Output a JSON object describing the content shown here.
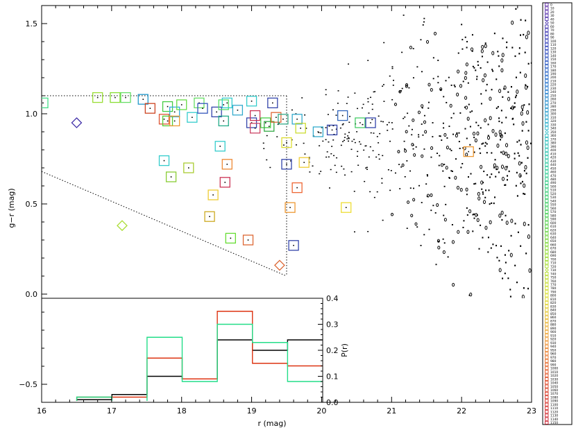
{
  "chart_data": [
    {
      "type": "scatter",
      "xlabel": "r (mag)",
      "ylabel": "g−r (mag)",
      "xlim": [
        16,
        23
      ],
      "ylim": [
        -0.6,
        1.6
      ],
      "xticks": [
        "16",
        "17",
        "18",
        "19",
        "20",
        "21",
        "22",
        "23"
      ],
      "yticks": [
        "−0.5",
        "0.0",
        "0.5",
        "1.0",
        "1.5"
      ],
      "grid": false,
      "selection_box": {
        "upper_g_r": 1.1,
        "r_max": 19.5,
        "diagonal": [
          [
            16.0,
            0.68
          ],
          [
            19.5,
            0.1
          ]
        ]
      },
      "candidates": [
        {
          "r": 16.02,
          "gr": 1.06,
          "marker": "square",
          "color": "#44dd88"
        },
        {
          "r": 16.5,
          "gr": 0.95,
          "marker": "diamond",
          "color": "#4433aa"
        },
        {
          "r": 16.8,
          "gr": 1.09,
          "marker": "square",
          "color": "#99dd33"
        },
        {
          "r": 17.05,
          "gr": 1.09,
          "marker": "square",
          "color": "#88dd33"
        },
        {
          "r": 17.2,
          "gr": 1.09,
          "marker": "square",
          "color": "#66dd66"
        },
        {
          "r": 17.15,
          "gr": 0.38,
          "marker": "diamond",
          "color": "#aadd33"
        },
        {
          "r": 17.45,
          "gr": 1.08,
          "marker": "square",
          "color": "#2299cc"
        },
        {
          "r": 17.55,
          "gr": 1.03,
          "marker": "square",
          "color": "#cc4422"
        },
        {
          "r": 17.75,
          "gr": 0.74,
          "marker": "square",
          "color": "#33cccc"
        },
        {
          "r": 17.85,
          "gr": 0.65,
          "marker": "square",
          "color": "#88cc33"
        },
        {
          "r": 17.8,
          "gr": 1.04,
          "marker": "square",
          "color": "#44cc44"
        },
        {
          "r": 17.9,
          "gr": 1.01,
          "marker": "square",
          "color": "#33aadd"
        },
        {
          "r": 17.75,
          "gr": 0.97,
          "marker": "square",
          "color": "#dd5533"
        },
        {
          "r": 17.8,
          "gr": 0.96,
          "marker": "square",
          "color": "#55cc33"
        },
        {
          "r": 17.9,
          "gr": 0.96,
          "marker": "square",
          "color": "#ee9933"
        },
        {
          "r": 18.0,
          "gr": 1.05,
          "marker": "square",
          "color": "#66dd44"
        },
        {
          "r": 18.1,
          "gr": 0.7,
          "marker": "square",
          "color": "#aacc33"
        },
        {
          "r": 18.15,
          "gr": 0.98,
          "marker": "square",
          "color": "#33cccc"
        },
        {
          "r": 18.25,
          "gr": 1.06,
          "marker": "square",
          "color": "#66dd66"
        },
        {
          "r": 18.3,
          "gr": 1.03,
          "marker": "square",
          "color": "#3355bb"
        },
        {
          "r": 18.4,
          "gr": 0.43,
          "marker": "square",
          "color": "#ccaa22"
        },
        {
          "r": 18.45,
          "gr": 0.55,
          "marker": "square",
          "color": "#eecc33"
        },
        {
          "r": 18.5,
          "gr": 1.01,
          "marker": "square",
          "color": "#3344aa"
        },
        {
          "r": 18.55,
          "gr": 0.82,
          "marker": "square",
          "color": "#33cccc"
        },
        {
          "r": 18.6,
          "gr": 1.05,
          "marker": "square",
          "color": "#55dd66"
        },
        {
          "r": 18.65,
          "gr": 1.06,
          "marker": "square",
          "color": "#33cccc"
        },
        {
          "r": 18.6,
          "gr": 0.96,
          "marker": "square",
          "color": "#22aa88"
        },
        {
          "r": 18.65,
          "gr": 0.72,
          "marker": "square",
          "color": "#ee8833"
        },
        {
          "r": 18.62,
          "gr": 0.62,
          "marker": "square",
          "color": "#cc3355"
        },
        {
          "r": 18.7,
          "gr": 0.31,
          "marker": "square",
          "color": "#66dd33"
        },
        {
          "r": 18.8,
          "gr": 1.02,
          "marker": "square",
          "color": "#33aacc"
        },
        {
          "r": 18.95,
          "gr": 0.3,
          "marker": "square",
          "color": "#dd6633"
        },
        {
          "r": 19.0,
          "gr": 1.07,
          "marker": "square",
          "color": "#33cccc"
        },
        {
          "r": 19.0,
          "gr": 0.95,
          "marker": "square",
          "color": "#3344aa"
        },
        {
          "r": 19.05,
          "gr": 0.99,
          "marker": "square",
          "color": "#cc3355"
        },
        {
          "r": 19.05,
          "gr": 0.92,
          "marker": "square",
          "color": "#cc4466"
        },
        {
          "r": 19.2,
          "gr": 0.95,
          "marker": "square",
          "color": "#44cc44"
        },
        {
          "r": 19.3,
          "gr": 1.06,
          "marker": "square",
          "color": "#3344aa"
        },
        {
          "r": 19.25,
          "gr": 0.93,
          "marker": "square",
          "color": "#33aa44"
        },
        {
          "r": 19.35,
          "gr": 0.98,
          "marker": "square",
          "color": "#dd6633"
        },
        {
          "r": 19.45,
          "gr": 0.97,
          "marker": "square",
          "color": "#33aa88"
        },
        {
          "r": 19.5,
          "gr": 0.84,
          "marker": "square",
          "color": "#dddd33"
        },
        {
          "r": 19.5,
          "gr": 0.72,
          "marker": "square",
          "color": "#3344aa"
        },
        {
          "r": 19.65,
          "gr": 0.97,
          "marker": "square",
          "color": "#33aacc"
        },
        {
          "r": 19.7,
          "gr": 0.92,
          "marker": "square",
          "color": "#ccdd33"
        },
        {
          "r": 19.75,
          "gr": 0.73,
          "marker": "square",
          "color": "#eecc33"
        },
        {
          "r": 19.65,
          "gr": 0.59,
          "marker": "square",
          "color": "#ee6633"
        },
        {
          "r": 19.55,
          "gr": 0.48,
          "marker": "square",
          "color": "#ee9933"
        },
        {
          "r": 19.6,
          "gr": 0.27,
          "marker": "square",
          "color": "#3344aa"
        },
        {
          "r": 19.4,
          "gr": 0.16,
          "marker": "diamond",
          "color": "#dd6633"
        },
        {
          "r": 19.95,
          "gr": 0.9,
          "marker": "square",
          "color": "#33aacc"
        },
        {
          "r": 20.15,
          "gr": 0.91,
          "marker": "square",
          "color": "#3344aa"
        },
        {
          "r": 20.3,
          "gr": 0.99,
          "marker": "square",
          "color": "#3366bb"
        },
        {
          "r": 20.35,
          "gr": 0.48,
          "marker": "square",
          "color": "#eedd33"
        },
        {
          "r": 20.55,
          "gr": 0.95,
          "marker": "square",
          "color": "#44cc66"
        },
        {
          "r": 20.7,
          "gr": 0.95,
          "marker": "square",
          "color": "#3344aa"
        },
        {
          "r": 22.1,
          "gr": 0.79,
          "marker": "square",
          "color": "#ee9933"
        }
      ],
      "background": {
        "marker": "dot",
        "color": "#000000",
        "r_range": [
          19.0,
          23.0
        ],
        "gr_center": 0.85,
        "note": ""
      }
    },
    {
      "type": "line",
      "ylabel": "P(r)",
      "xlim": [
        16,
        20
      ],
      "ylim": [
        0,
        0.4
      ],
      "yticks": [
        "0.0",
        "0.1",
        "0.2",
        "0.3",
        "0.4"
      ],
      "bin_edges": [
        16.0,
        16.5,
        17.0,
        17.5,
        18.0,
        18.5,
        19.0,
        19.5,
        20.0
      ],
      "series": [
        {
          "name": "",
          "color": "#000000",
          "values": [
            0.0,
            0.01,
            0.03,
            0.1,
            0.09,
            0.24,
            0.2,
            0.24
          ]
        },
        {
          "name": "",
          "color": "#dd3311",
          "values": [
            0.0,
            0.02,
            0.02,
            0.17,
            0.09,
            0.35,
            0.15,
            0.14
          ]
        },
        {
          "name": "",
          "color": "#22dd88",
          "values": [
            0.0,
            0.02,
            0.0,
            0.25,
            0.08,
            0.3,
            0.23,
            0.08
          ]
        }
      ]
    }
  ],
  "colorbar": {
    "labels": [
      "0",
      "10",
      "20",
      "30",
      "40",
      "50",
      "60",
      "70",
      "80",
      "90",
      "100",
      "110",
      "120",
      "130",
      "140",
      "150",
      "160",
      "170",
      "180",
      "190",
      "200",
      "210",
      "220",
      "230",
      "240",
      "250",
      "260",
      "270",
      "280",
      "290",
      "300",
      "310",
      "320",
      "330",
      "340",
      "350",
      "360",
      "370",
      "380",
      "390",
      "400",
      "410",
      "420",
      "430",
      "440",
      "450",
      "460",
      "470",
      "480",
      "490",
      "500",
      "510",
      "520",
      "530",
      "540",
      "550",
      "560",
      "570",
      "580",
      "590",
      "600",
      "610",
      "620",
      "630",
      "640",
      "650",
      "660",
      "670",
      "680",
      "690",
      "700",
      "710",
      "720",
      "730",
      "740",
      "750",
      "760",
      "770",
      "780",
      "790",
      "800",
      "810",
      "820",
      "830",
      "840",
      "850",
      "860",
      "870",
      "880",
      "890",
      "900",
      "910",
      "920",
      "930",
      "940",
      "950",
      "960",
      "970",
      "980",
      "990",
      "1000",
      "1010",
      "1020",
      "1030",
      "1040",
      "1050",
      "1060",
      "1070",
      "1080",
      "1090",
      "1100",
      "1110",
      "1120",
      "1130",
      "1140",
      "1150"
    ],
    "gradient": [
      "#6633aa",
      "#3344bb",
      "#2277cc",
      "#33bbcc",
      "#33cc99",
      "#44cc55",
      "#99dd33",
      "#dddd33",
      "#ee9933",
      "#dd4422",
      "#cc2233"
    ],
    "diamond_rows": [
      5,
      35,
      73,
      116
    ]
  }
}
